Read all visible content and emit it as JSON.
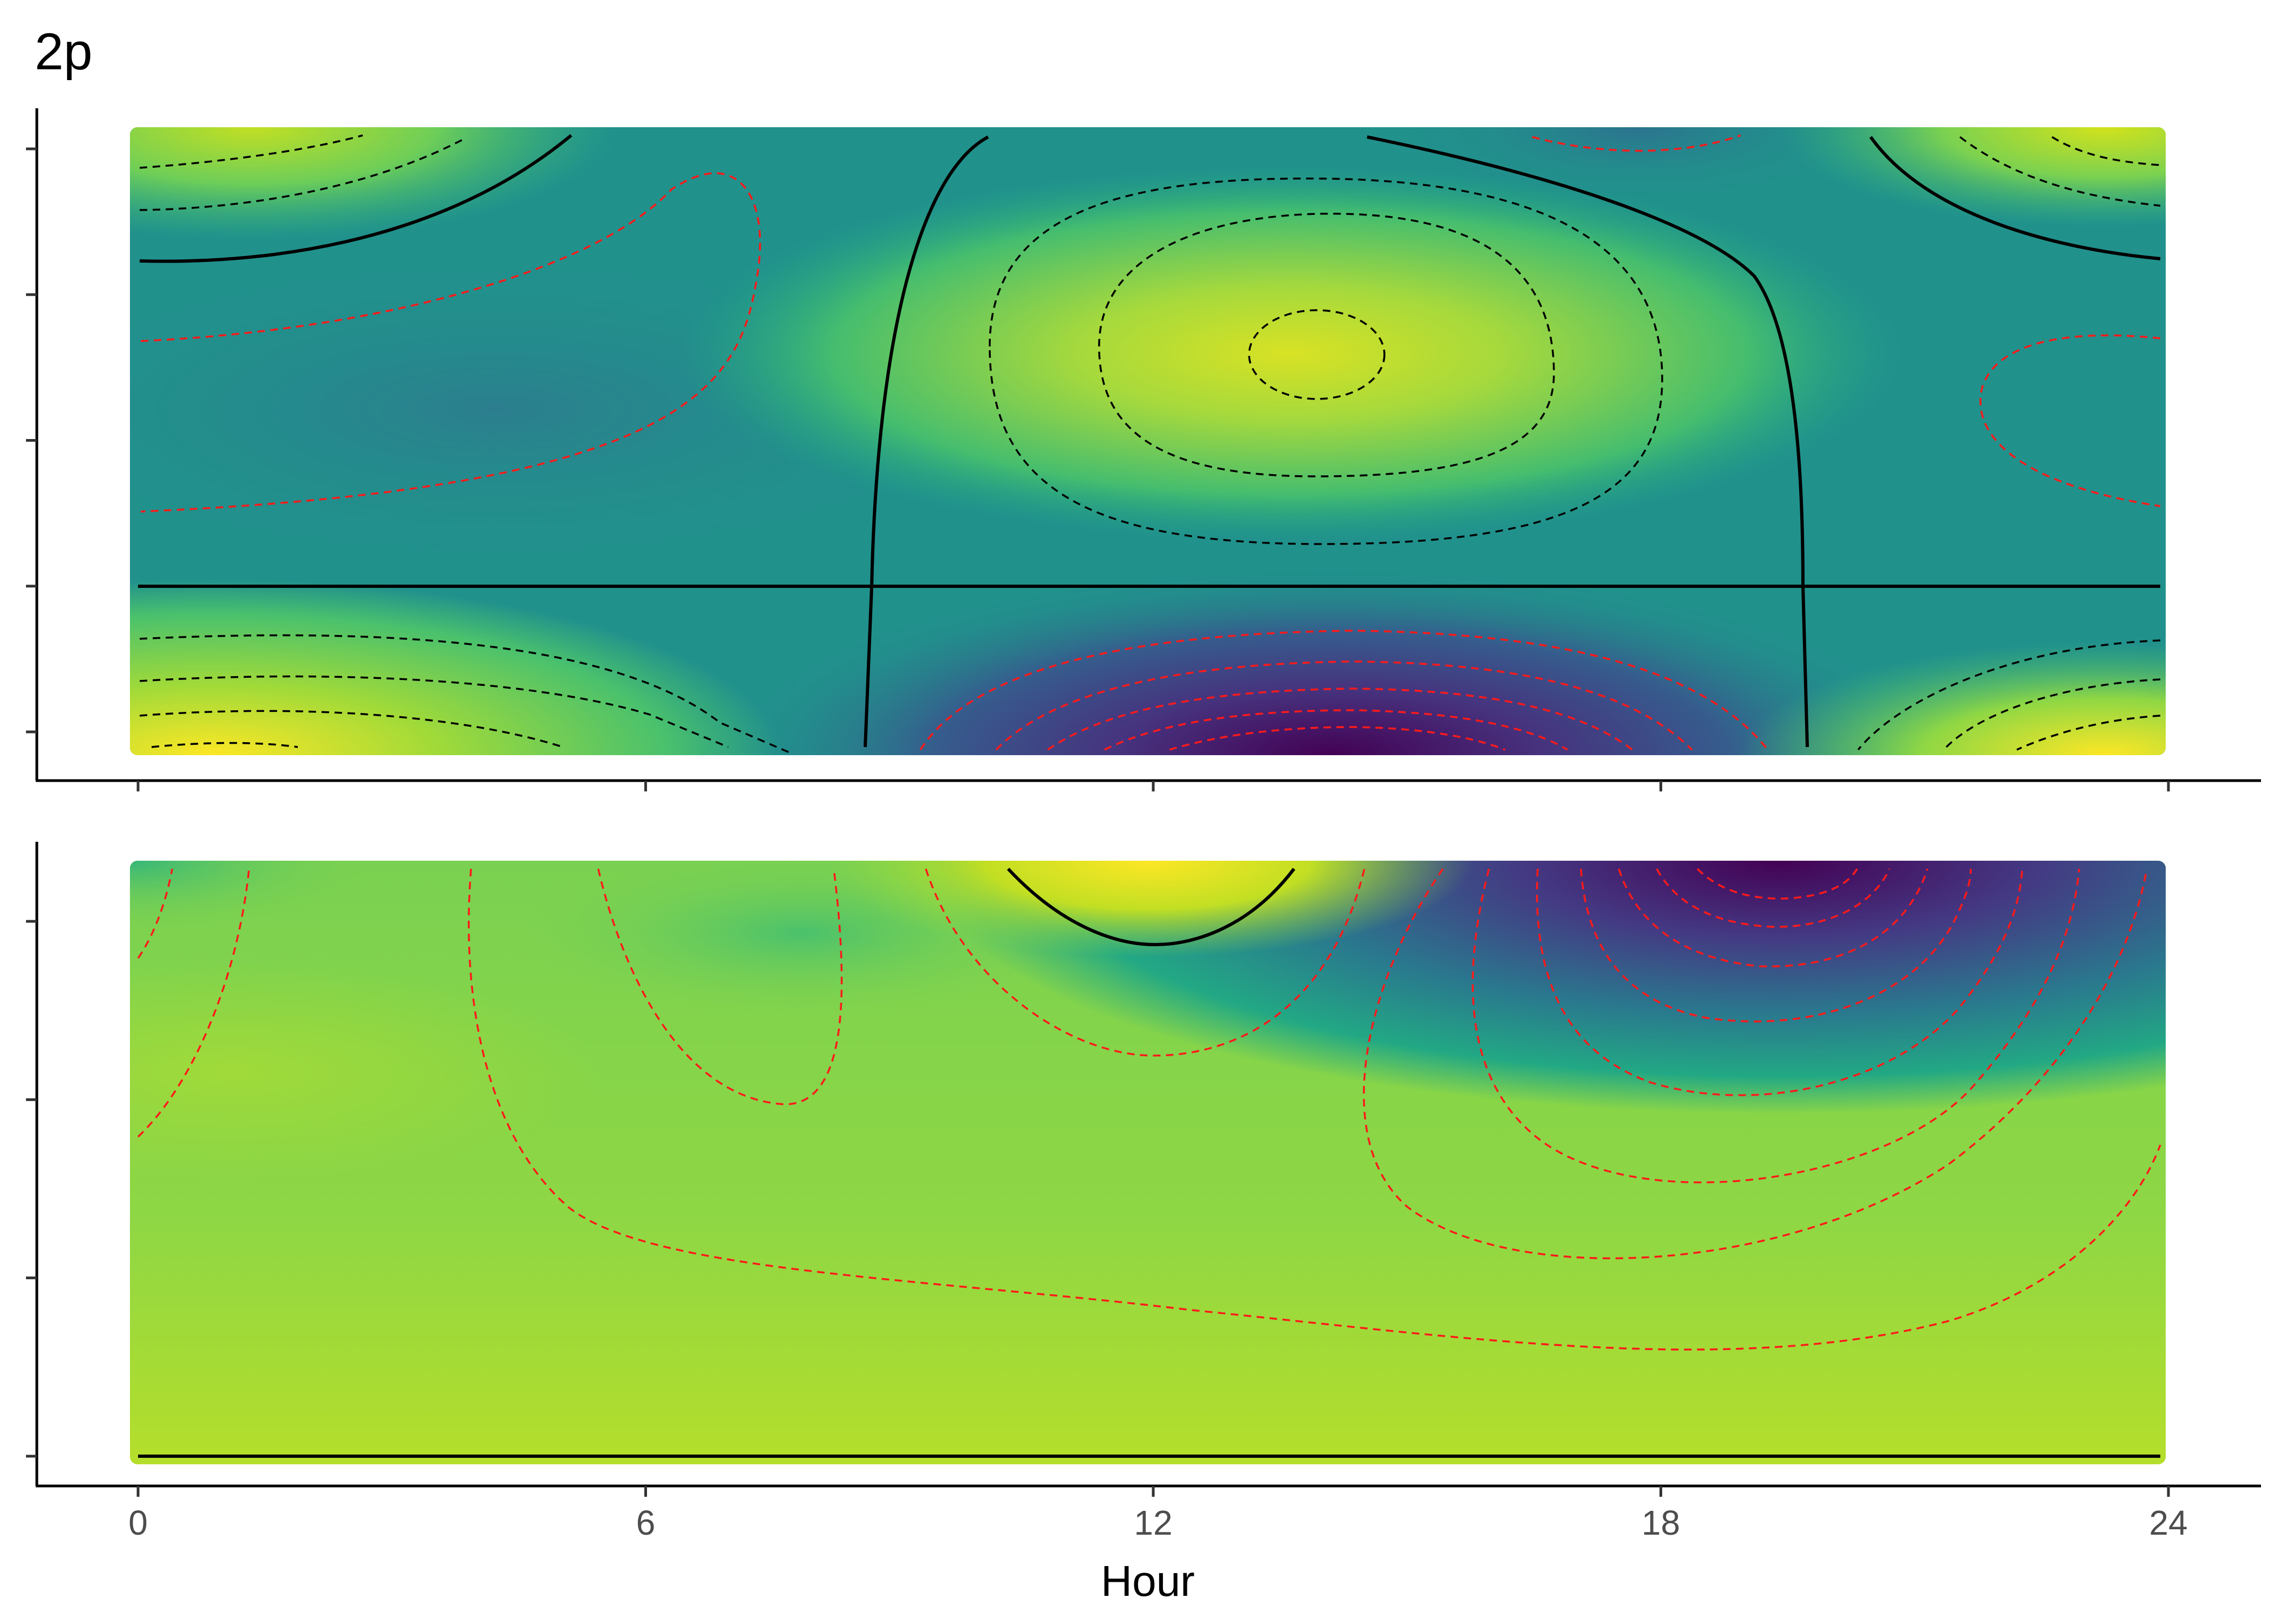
{
  "panel_tag": "2p",
  "colors": {
    "viridis": [
      "#440154",
      "#3b528b",
      "#21918c",
      "#5ec962",
      "#fde725"
    ],
    "contour_solid": "#000000",
    "contour_dashed_dark": "#000000",
    "contour_dashed_red": "#ff1a1a"
  },
  "chart_data": [
    {
      "type": "heatmap",
      "title": "",
      "xlabel": "",
      "ylabel": "",
      "x_range": [
        0,
        24
      ],
      "x_ticks": [
        "0",
        "6",
        "12",
        "18",
        "24"
      ],
      "x_tick_labels_shown": false,
      "y_ticks": 5,
      "y_tick_labels_shown": false,
      "colormap": "viridis",
      "grid": false,
      "legend": "none",
      "features": [
        {
          "kind": "maximum",
          "hour": 14,
          "level": "high"
        },
        {
          "kind": "minimum",
          "hour": 14.5,
          "level": "lowest"
        },
        {
          "kind": "maximum",
          "hour": 1.5,
          "level": "high"
        },
        {
          "kind": "maximum",
          "hour": 23.5,
          "level": "high"
        }
      ]
    },
    {
      "type": "heatmap",
      "title": "",
      "xlabel": "Hour",
      "ylabel": "",
      "x_range": [
        0,
        24
      ],
      "x_ticks": [
        "0",
        "6",
        "12",
        "18",
        "24"
      ],
      "x_tick_labels_shown": true,
      "y_ticks": 4,
      "y_tick_labels_shown": false,
      "colormap": "viridis",
      "grid": false,
      "legend": "none",
      "features": [
        {
          "kind": "maximum",
          "hour": 12,
          "level": "highest"
        },
        {
          "kind": "minimum",
          "hour": 19.5,
          "level": "lowest"
        }
      ]
    }
  ]
}
